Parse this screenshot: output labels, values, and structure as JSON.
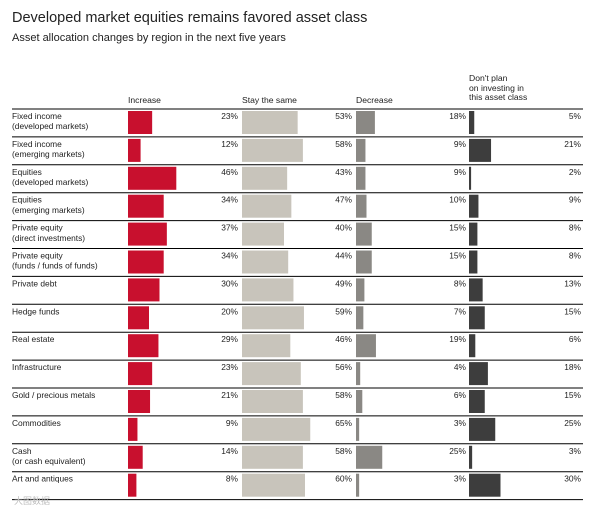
{
  "title": "Developed market equities remains favored asset class",
  "subtitle": "Asset allocation changes by region in the next five years",
  "watermark": "大图数据",
  "chart_data": {
    "type": "bar",
    "title": "Developed market equities remains favored asset class",
    "subtitle": "Asset allocation changes by region in the next five years",
    "unit": "%",
    "categories": [
      "Fixed income\n(developed markets)",
      "Fixed income\n(emerging markets)",
      "Equities\n(developed markets)",
      "Equities\n(emerging markets)",
      "Private equity\n(direct investments)",
      "Private equity\n(funds / funds of funds)",
      "Private debt",
      "Hedge funds",
      "Real estate",
      "Infrastructure",
      "Gold / precious metals",
      "Commodities",
      "Cash\n(or cash equivalent)",
      "Art and antiques"
    ],
    "series": [
      {
        "name": "Increase",
        "color": "#c8102e",
        "values": [
          23,
          12,
          46,
          34,
          37,
          34,
          30,
          20,
          29,
          23,
          21,
          9,
          14,
          8
        ]
      },
      {
        "name": "Stay the same",
        "color": "#c8c4bb",
        "values": [
          53,
          58,
          43,
          47,
          40,
          44,
          49,
          59,
          46,
          56,
          58,
          65,
          58,
          60
        ]
      },
      {
        "name": "Decrease",
        "color": "#8a8884",
        "values": [
          18,
          9,
          9,
          10,
          15,
          15,
          8,
          7,
          19,
          4,
          6,
          3,
          25,
          3
        ]
      },
      {
        "name": "Don't plan\non investing in\nthis asset class",
        "color": "#3d3d3d",
        "values": [
          5,
          21,
          2,
          9,
          8,
          8,
          13,
          15,
          6,
          18,
          15,
          25,
          3,
          30
        ]
      }
    ],
    "legend": "column headers",
    "grid": false
  }
}
